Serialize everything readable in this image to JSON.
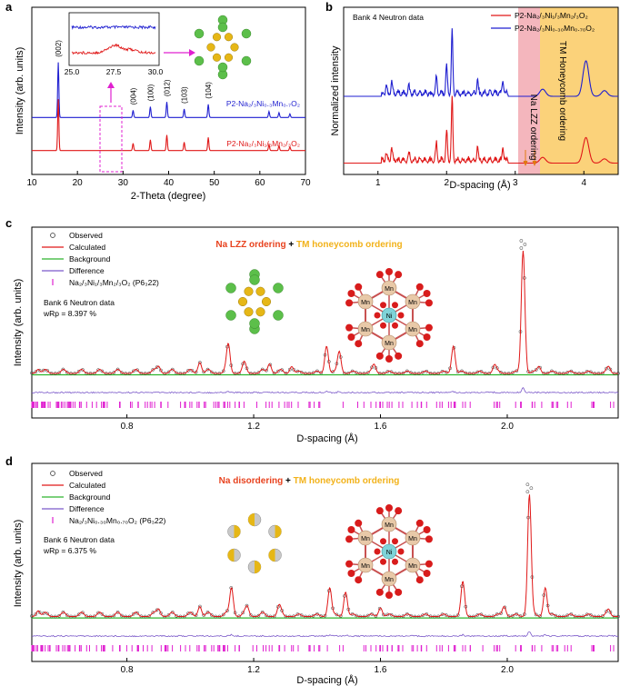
{
  "chart_data": [
    {
      "panel": "a",
      "type": "line",
      "xlabel": "2-Theta (degree)",
      "ylabel": "Intensity (arb. units)",
      "xlim": [
        10,
        70
      ],
      "x_ticks": [
        "10",
        "20",
        "30",
        "40",
        "50",
        "60",
        "70"
      ],
      "series": [
        {
          "name": "P2-Na2/3Ni0.3Mn0.7O2",
          "color": "#1f1fd0",
          "baseline": 0.62,
          "peaks": [
            [
              15.8,
              0.92
            ],
            [
              32.2,
              0.12
            ],
            [
              36.0,
              0.18
            ],
            [
              39.6,
              0.26
            ],
            [
              43.4,
              0.14
            ],
            [
              48.7,
              0.22
            ],
            [
              62.0,
              0.1
            ],
            [
              64.2,
              0.08
            ],
            [
              66.6,
              0.06
            ]
          ]
        },
        {
          "name": "P2-Na2/3Ni1/3Mn2/3O2",
          "color": "#e01818",
          "baseline": 0.26,
          "peaks": [
            [
              15.8,
              0.86
            ],
            [
              32.2,
              0.12
            ],
            [
              36.0,
              0.18
            ],
            [
              39.6,
              0.26
            ],
            [
              43.4,
              0.14
            ],
            [
              48.7,
              0.22
            ],
            [
              62.0,
              0.1
            ],
            [
              64.2,
              0.08
            ],
            [
              66.6,
              0.06
            ]
          ]
        }
      ],
      "peak_labels": [
        {
          "x": 15.8,
          "text": "(002)"
        },
        {
          "x": 32.2,
          "text": "(004)"
        },
        {
          "x": 36.0,
          "text": "(100)"
        },
        {
          "x": 39.6,
          "text": "(012)"
        },
        {
          "x": 43.4,
          "text": "(103)"
        },
        {
          "x": 48.7,
          "text": "(104)"
        }
      ],
      "inset": {
        "xlim": [
          25.0,
          30.0
        ],
        "x_ticks": [
          "25.0",
          "27.5",
          "30.0"
        ]
      },
      "series_labels": [
        "P2-Na₂/₃Ni₀.₃Mn₀.₇O₂",
        "P2-Na₂/₃Ni₁/₃Mn₂/₃O₂"
      ]
    },
    {
      "panel": "b",
      "type": "line",
      "xlabel": "D-spacing (Å)",
      "ylabel": "Normalized intensity",
      "xlim": [
        0.5,
        4.5
      ],
      "x_ticks": [
        "1",
        "2",
        "3",
        "4"
      ],
      "annotation": "Bank 4 Neutron data",
      "legend": [
        "P2-Na₂/₃Ni₁/₃Mn₂/₃O₂",
        "P2-Na₂/₃Ni₀.₃₀Mn₀.₇₀O₂"
      ],
      "legend_colors": [
        "#e01818",
        "#1f1fd0"
      ],
      "regions": [
        {
          "label": "Na LZZ ordering",
          "x": [
            3.05,
            3.3
          ],
          "color": "#f4b6bd"
        },
        {
          "label": "TM Honeycomb ordering",
          "x": [
            3.3,
            4.5
          ],
          "color": "#fbd27a"
        }
      ],
      "series": [
        {
          "name": "P2-Na2/3Ni0.30Mn0.70O2",
          "color": "#1f1fd0",
          "baseline": 0.55,
          "peaks": [
            [
              1.12,
              0.05
            ],
            [
              1.2,
              0.08
            ],
            [
              1.45,
              0.05
            ],
            [
              1.85,
              0.12
            ],
            [
              2.0,
              0.2
            ],
            [
              2.08,
              0.45
            ],
            [
              2.45,
              0.1
            ],
            [
              2.82,
              0.1
            ],
            [
              3.4,
              0.05
            ],
            [
              4.03,
              0.25
            ],
            [
              4.3,
              0.04
            ]
          ]
        },
        {
          "name": "P2-Na2/3Ni1/3Mn2/3O2",
          "color": "#e01818",
          "baseline": 0.08,
          "peaks": [
            [
              1.12,
              0.05
            ],
            [
              1.2,
              0.08
            ],
            [
              1.45,
              0.05
            ],
            [
              1.85,
              0.12
            ],
            [
              2.0,
              0.2
            ],
            [
              2.08,
              0.45
            ],
            [
              2.45,
              0.1
            ],
            [
              2.82,
              0.1
            ],
            [
              3.4,
              0.04
            ],
            [
              4.03,
              0.18
            ],
            [
              4.3,
              0.03
            ]
          ]
        }
      ]
    },
    {
      "panel": "c",
      "type": "line",
      "xlabel": "D-spacing (Å)",
      "ylabel": "Intensity (arb. units)",
      "xlim": [
        0.5,
        2.35
      ],
      "x_ticks": [
        "0.8",
        "1.2",
        "1.6",
        "2.0"
      ],
      "legend": [
        "Observed",
        "Calculated",
        "Background",
        "Difference",
        "Na₂/₃Ni₁/₃Mn₂/₃O₂ (P6₃22)"
      ],
      "annotation_lines": [
        "Bank 6 Neutron data",
        "wRp = 8.397 %"
      ],
      "title_parts": [
        {
          "text": "Na LZZ ordering",
          "color": "#e8421e"
        },
        {
          "text": " + ",
          "color": "#000000"
        },
        {
          "text": "TM honeycomb ordering",
          "color": "#f2b21a"
        }
      ],
      "peaks": [
        [
          0.52,
          0.03
        ],
        [
          0.9,
          0.05
        ],
        [
          1.03,
          0.08
        ],
        [
          1.12,
          0.2
        ],
        [
          1.17,
          0.06
        ],
        [
          1.25,
          0.07
        ],
        [
          1.32,
          0.05
        ],
        [
          1.43,
          0.2
        ],
        [
          1.47,
          0.16
        ],
        [
          1.58,
          0.06
        ],
        [
          1.83,
          0.2
        ],
        [
          1.96,
          0.06
        ],
        [
          2.05,
          0.9
        ],
        [
          2.1,
          0.05
        ],
        [
          2.32,
          0.04
        ]
      ]
    },
    {
      "panel": "d",
      "type": "line",
      "xlabel": "D-spacing (Å)",
      "ylabel": "Intensity (arb. units)",
      "xlim": [
        0.5,
        2.35
      ],
      "x_ticks": [
        "0.8",
        "1.2",
        "1.6",
        "2.0"
      ],
      "legend": [
        "Observed",
        "Calculated",
        "Background",
        "Difference",
        "Na₂/₃Ni₀.₃₀Mn₀.₇₀O₂ (P6₃22)"
      ],
      "annotation_lines": [
        "Bank 6 Neutron data",
        "wRp = 6.375 %"
      ],
      "title_parts": [
        {
          "text": "Na disordering",
          "color": "#e8421e"
        },
        {
          "text": " + ",
          "color": "#000000"
        },
        {
          "text": "TM honeycomb ordering",
          "color": "#f2b21a"
        }
      ],
      "peaks": [
        [
          0.52,
          0.04
        ],
        [
          0.9,
          0.05
        ],
        [
          1.03,
          0.07
        ],
        [
          1.13,
          0.2
        ],
        [
          1.18,
          0.06
        ],
        [
          1.28,
          0.06
        ],
        [
          1.44,
          0.2
        ],
        [
          1.49,
          0.17
        ],
        [
          1.6,
          0.06
        ],
        [
          1.86,
          0.23
        ],
        [
          1.99,
          0.07
        ],
        [
          2.07,
          0.85
        ],
        [
          2.12,
          0.2
        ],
        [
          2.32,
          0.04
        ]
      ]
    }
  ],
  "panel_letters": {
    "a": "a",
    "b": "b",
    "c": "c",
    "d": "d"
  },
  "structure_labels": {
    "mn": "Mn",
    "ni": "Ni"
  },
  "colors": {
    "red": "#e01818",
    "blue": "#1f1fd0",
    "green": "#2db52d",
    "violet": "#7b59c9",
    "magenta": "#e020d0",
    "gold": "#d9b21e"
  }
}
